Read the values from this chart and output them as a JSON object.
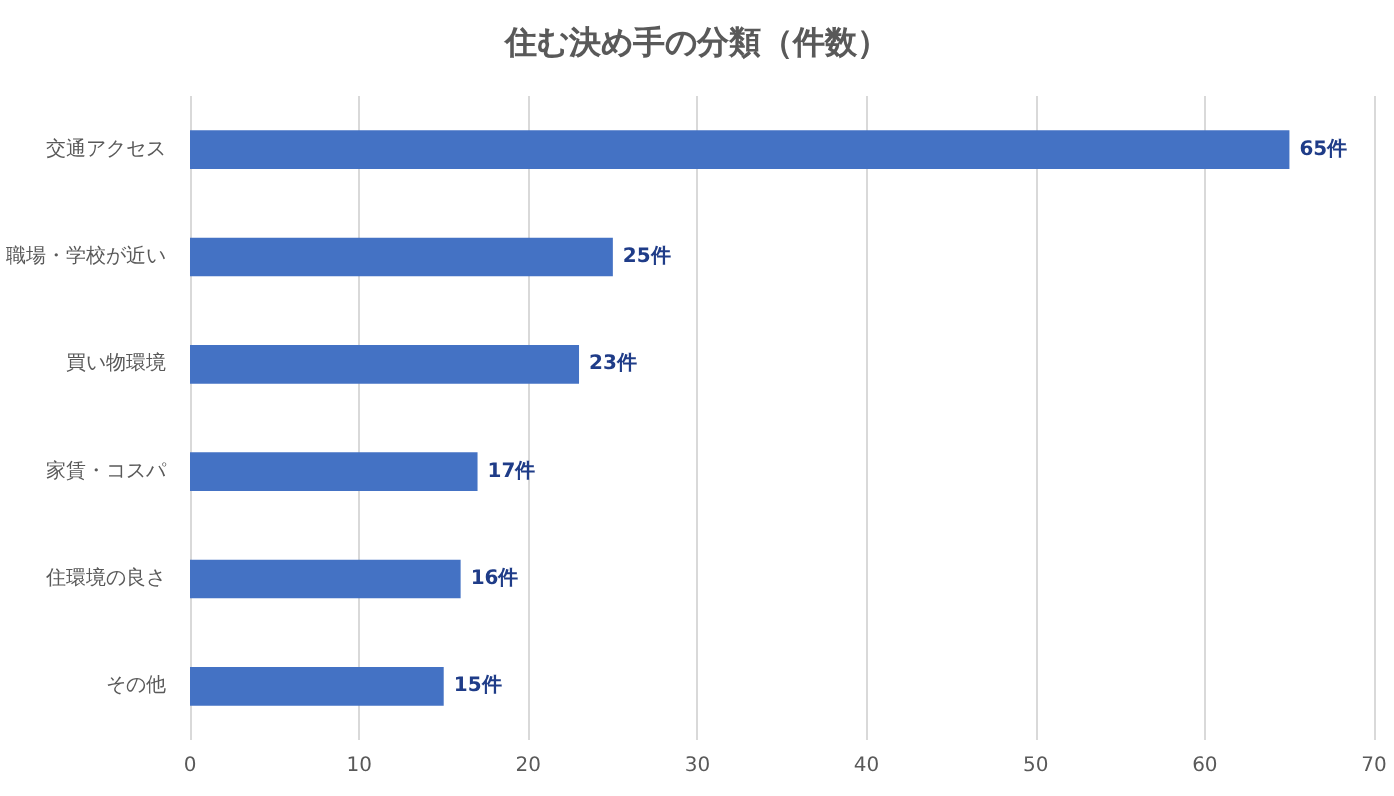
{
  "chart_data": {
    "type": "bar",
    "orientation": "horizontal",
    "title": "住む決め手の分類（件数）",
    "categories": [
      "交通アクセス",
      "職場・学校が近い",
      "買い物環境",
      "家賃・コスパ",
      "住環境の良さ",
      "その他"
    ],
    "values": [
      65,
      25,
      23,
      17,
      16,
      15
    ],
    "color": "#4472c4",
    "value_labels": [
      "65件",
      "25件",
      "23件",
      "17件",
      "16件",
      "15件"
    ],
    "xlim": [
      0,
      70
    ],
    "xticks": [
      0,
      10,
      20,
      30,
      40,
      50,
      60,
      70
    ],
    "grid": "x"
  }
}
